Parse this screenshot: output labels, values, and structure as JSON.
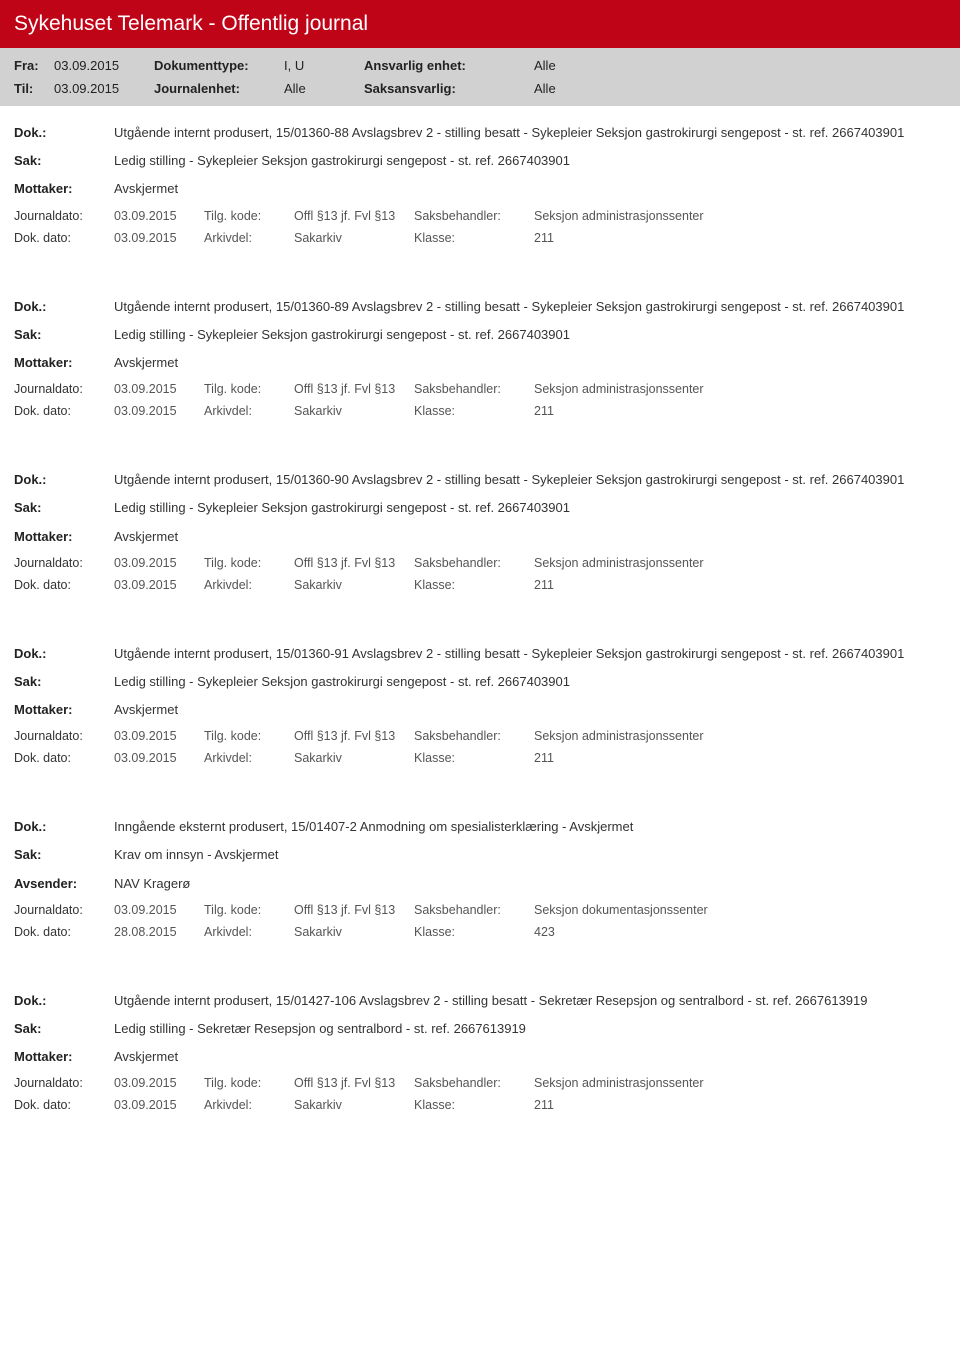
{
  "header": {
    "title": "Sykehuset Telemark - Offentlig journal"
  },
  "filters": {
    "fra_label": "Fra:",
    "fra_value": "03.09.2015",
    "til_label": "Til:",
    "til_value": "03.09.2015",
    "dokumenttype_label": "Dokumenttype:",
    "dokumenttype_value": "I, U",
    "journalenhet_label": "Journalenhet:",
    "journalenhet_value": "Alle",
    "ansvarlig_label": "Ansvarlig enhet:",
    "ansvarlig_value": "Alle",
    "saksansvarlig_label": "Saksansvarlig:",
    "saksansvarlig_value": "Alle"
  },
  "labels": {
    "dok": "Dok.:",
    "sak": "Sak:",
    "mottaker": "Mottaker:",
    "avsender": "Avsender:",
    "journaldato": "Journaldato:",
    "tilgkode": "Tilg. kode:",
    "saksbehandler": "Saksbehandler:",
    "dokdato": "Dok. dato:",
    "arkivdel": "Arkivdel:",
    "klasse": "Klasse:"
  },
  "records": [
    {
      "dok": "Utgående internt produsert, 15/01360-88 Avslagsbrev 2 - stilling besatt - Sykepleier Seksjon gastrokirurgi sengepost - st. ref. 2667403901",
      "sak": "Ledig stilling - Sykepleier Seksjon gastrokirurgi sengepost - st. ref. 2667403901",
      "party_label": "Mottaker:",
      "party_value": "Avskjermet",
      "journaldato": "03.09.2015",
      "tilgkode": "Offl §13 jf. Fvl §13",
      "saksbehandler": "Seksjon administrasjonssenter",
      "dokdato": "03.09.2015",
      "arkivdel": "Sakarkiv",
      "klasse": "211"
    },
    {
      "dok": "Utgående internt produsert, 15/01360-89 Avslagsbrev 2 - stilling besatt - Sykepleier Seksjon gastrokirurgi sengepost - st. ref. 2667403901",
      "sak": "Ledig stilling - Sykepleier Seksjon gastrokirurgi sengepost - st. ref. 2667403901",
      "party_label": "Mottaker:",
      "party_value": "Avskjermet",
      "journaldato": "03.09.2015",
      "tilgkode": "Offl §13 jf. Fvl §13",
      "saksbehandler": "Seksjon administrasjonssenter",
      "dokdato": "03.09.2015",
      "arkivdel": "Sakarkiv",
      "klasse": "211"
    },
    {
      "dok": "Utgående internt produsert, 15/01360-90 Avslagsbrev 2 - stilling besatt - Sykepleier Seksjon gastrokirurgi sengepost - st. ref. 2667403901",
      "sak": "Ledig stilling - Sykepleier Seksjon gastrokirurgi sengepost - st. ref. 2667403901",
      "party_label": "Mottaker:",
      "party_value": "Avskjermet",
      "journaldato": "03.09.2015",
      "tilgkode": "Offl §13 jf. Fvl §13",
      "saksbehandler": "Seksjon administrasjonssenter",
      "dokdato": "03.09.2015",
      "arkivdel": "Sakarkiv",
      "klasse": "211"
    },
    {
      "dok": "Utgående internt produsert, 15/01360-91 Avslagsbrev 2 - stilling besatt - Sykepleier Seksjon gastrokirurgi sengepost - st. ref. 2667403901",
      "sak": "Ledig stilling - Sykepleier Seksjon gastrokirurgi sengepost - st. ref. 2667403901",
      "party_label": "Mottaker:",
      "party_value": "Avskjermet",
      "journaldato": "03.09.2015",
      "tilgkode": "Offl §13 jf. Fvl §13",
      "saksbehandler": "Seksjon administrasjonssenter",
      "dokdato": "03.09.2015",
      "arkivdel": "Sakarkiv",
      "klasse": "211"
    },
    {
      "dok": "Inngående eksternt produsert, 15/01407-2 Anmodning om spesialisterklæring - Avskjermet",
      "sak": "Krav om innsyn - Avskjermet",
      "party_label": "Avsender:",
      "party_value": "NAV Kragerø",
      "journaldato": "03.09.2015",
      "tilgkode": "Offl §13 jf. Fvl §13",
      "saksbehandler": "Seksjon dokumentasjonssenter",
      "dokdato": "28.08.2015",
      "arkivdel": "Sakarkiv",
      "klasse": "423"
    },
    {
      "dok": "Utgående internt produsert, 15/01427-106 Avslagsbrev 2 - stilling besatt - Sekretær Resepsjon og sentralbord - st. ref. 2667613919",
      "sak": "Ledig stilling - Sekretær Resepsjon og sentralbord - st. ref. 2667613919",
      "party_label": "Mottaker:",
      "party_value": "Avskjermet",
      "journaldato": "03.09.2015",
      "tilgkode": "Offl §13 jf. Fvl §13",
      "saksbehandler": "Seksjon administrasjonssenter",
      "dokdato": "03.09.2015",
      "arkivdel": "Sakarkiv",
      "klasse": "211"
    }
  ]
}
